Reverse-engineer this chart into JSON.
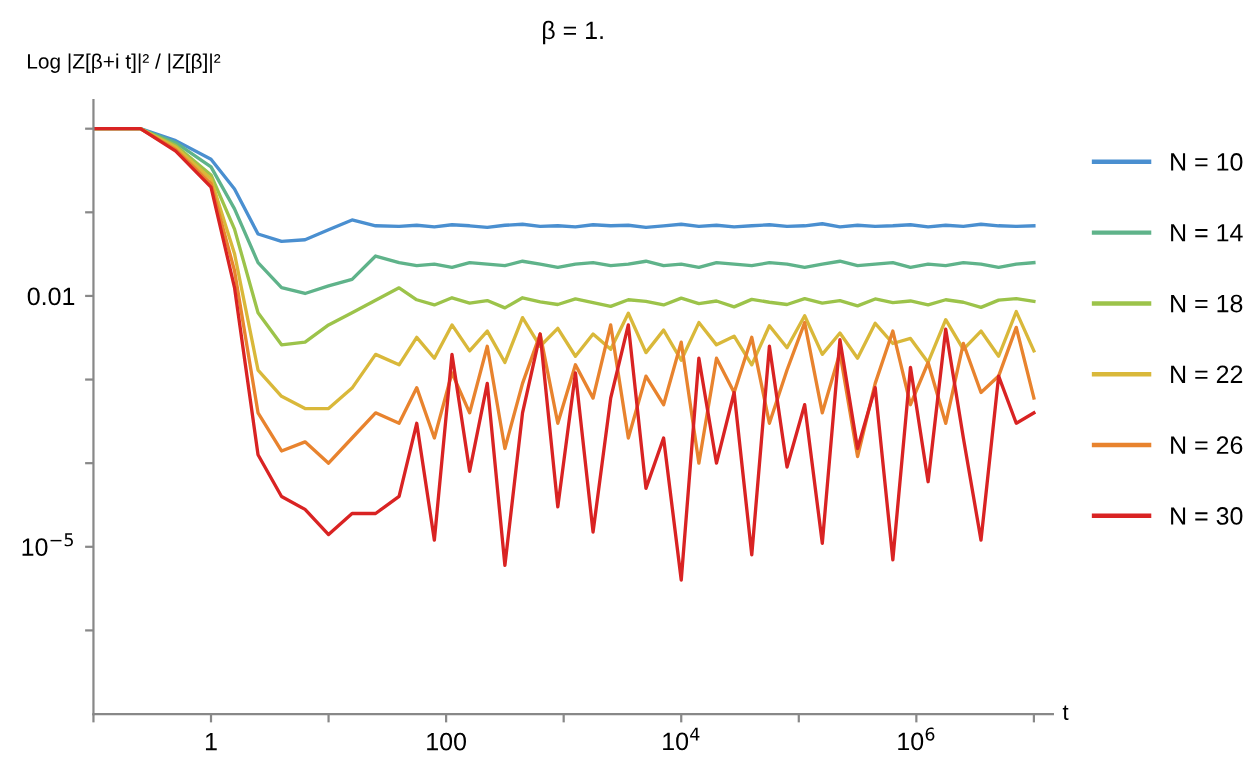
{
  "chart_data": {
    "type": "line",
    "title": "β = 1.",
    "xlabel": "t",
    "ylabel": "Log |Z[β+i t]|² / |Z[β]|²",
    "log": "xy",
    "grid": false,
    "legend": "right",
    "marker": "none",
    "line_style": "solid",
    "xlim": [
      0.1,
      14500000
    ],
    "ylim": [
      1e-07,
      2.2
    ],
    "xticks": [
      {
        "value": 0.1,
        "label": null
      },
      1,
      {
        "value": 10,
        "label": null
      },
      100,
      {
        "value": 1000,
        "label": null
      },
      {
        "value": 10000,
        "label": "10$^{4}$"
      },
      {
        "value": 100000,
        "label": null
      },
      {
        "value": 1000000,
        "label": "10$^{6}$"
      },
      {
        "value": 10000000,
        "label": null
      }
    ],
    "yticks": [
      {
        "value": 1e-06,
        "label": null
      },
      {
        "value": 1e-05,
        "label": "10$^{−5}$"
      },
      {
        "value": 0.0001,
        "label": null
      },
      {
        "value": 0.001,
        "label": null
      },
      0.01,
      {
        "value": 0.1,
        "label": null
      },
      {
        "value": 1,
        "label": null
      }
    ],
    "x": [
      0.1,
      0.251,
      0.501,
      1,
      1.585,
      2.512,
      3.981,
      6.31,
      10,
      15.85,
      25.12,
      39.81,
      56.23,
      79.43,
      112.2,
      158.5,
      223.9,
      316.2,
      446.7,
      631,
      891.3,
      1259,
      1778,
      2512,
      3548,
      5012,
      7079,
      10000,
      14130,
      19950,
      28180,
      39810,
      56230,
      79430,
      112200,
      158500,
      223900,
      316200,
      446700,
      631000,
      891300,
      1259000,
      1778000,
      2512000,
      3548000,
      5012000,
      7079000,
      10000000
    ],
    "series": [
      {
        "name": "N = 10",
        "color": "#4a8fd0",
        "values": [
          1,
          1,
          0.72,
          0.43,
          0.19,
          0.055,
          0.045,
          0.047,
          0.062,
          0.081,
          0.069,
          0.068,
          0.07,
          0.067,
          0.071,
          0.069,
          0.066,
          0.07,
          0.072,
          0.068,
          0.069,
          0.067,
          0.071,
          0.069,
          0.07,
          0.066,
          0.069,
          0.072,
          0.068,
          0.07,
          0.067,
          0.069,
          0.071,
          0.068,
          0.069,
          0.073,
          0.067,
          0.07,
          0.068,
          0.069,
          0.071,
          0.067,
          0.07,
          0.068,
          0.072,
          0.069,
          0.068,
          0.069
        ]
      },
      {
        "name": "N = 14",
        "color": "#5fb38a",
        "values": [
          1,
          1,
          0.68,
          0.35,
          0.11,
          0.025,
          0.0126,
          0.0107,
          0.0132,
          0.0158,
          0.03,
          0.025,
          0.023,
          0.024,
          0.022,
          0.025,
          0.024,
          0.023,
          0.026,
          0.024,
          0.022,
          0.024,
          0.025,
          0.023,
          0.024,
          0.026,
          0.023,
          0.024,
          0.022,
          0.025,
          0.024,
          0.023,
          0.025,
          0.024,
          0.022,
          0.024,
          0.026,
          0.023,
          0.024,
          0.025,
          0.022,
          0.024,
          0.023,
          0.025,
          0.024,
          0.022,
          0.024,
          0.025
        ]
      },
      {
        "name": "N = 18",
        "color": "#9cc34a",
        "values": [
          1,
          1,
          0.63,
          0.28,
          0.063,
          0.0063,
          0.0026,
          0.0028,
          0.0045,
          0.0063,
          0.0089,
          0.0125,
          0.009,
          0.0078,
          0.0095,
          0.0082,
          0.0088,
          0.0072,
          0.0095,
          0.0085,
          0.0079,
          0.0092,
          0.0083,
          0.0075,
          0.009,
          0.0086,
          0.0078,
          0.0094,
          0.0081,
          0.0087,
          0.0074,
          0.0091,
          0.0084,
          0.0079,
          0.0093,
          0.0082,
          0.0088,
          0.0076,
          0.0092,
          0.0083,
          0.0087,
          0.0078,
          0.009,
          0.0084,
          0.0073,
          0.0089,
          0.0093,
          0.0086
        ]
      },
      {
        "name": "N = 22",
        "color": "#d9b83a",
        "values": [
          1,
          1,
          0.6,
          0.25,
          0.032,
          0.0013,
          0.00063,
          0.00045,
          0.00045,
          0.00079,
          0.002,
          0.0015,
          0.0032,
          0.0018,
          0.0045,
          0.0022,
          0.0038,
          0.0016,
          0.0055,
          0.0025,
          0.0041,
          0.0019,
          0.0035,
          0.0023,
          0.0062,
          0.0021,
          0.0039,
          0.0017,
          0.0048,
          0.0026,
          0.0033,
          0.0015,
          0.0044,
          0.0024,
          0.0058,
          0.002,
          0.0036,
          0.0018,
          0.0047,
          0.0027,
          0.0031,
          0.0016,
          0.0052,
          0.0023,
          0.0038,
          0.0019,
          0.0065,
          0.0022
        ]
      },
      {
        "name": "N = 26",
        "color": "#e8832e",
        "values": [
          1,
          1,
          0.56,
          0.22,
          0.02,
          0.0004,
          0.00014,
          0.00018,
          0.0001,
          0.0002,
          0.0004,
          0.0003,
          0.0008,
          0.0002,
          0.0012,
          0.0004,
          0.0025,
          0.00015,
          0.0009,
          0.0035,
          0.0003,
          0.0015,
          0.0006,
          0.0045,
          0.0002,
          0.0011,
          0.0005,
          0.0028,
          0.0001,
          0.0018,
          0.0007,
          0.0032,
          0.0003,
          0.0013,
          0.0048,
          0.0004,
          0.0021,
          0.00012,
          0.0009,
          0.0038,
          0.0005,
          0.0016,
          0.0003,
          0.0027,
          0.0007,
          0.0011,
          0.0042,
          0.0006
        ]
      },
      {
        "name": "N = 30",
        "color": "#d92323",
        "values": [
          1,
          1,
          0.54,
          0.2,
          0.0126,
          0.000126,
          4e-05,
          2.8e-05,
          1.4e-05,
          2.5e-05,
          2.5e-05,
          4e-05,
          0.0003,
          1.2e-05,
          0.002,
          8e-05,
          0.0009,
          6e-06,
          0.0004,
          0.0035,
          3e-05,
          0.0012,
          1.5e-05,
          0.0006,
          0.0045,
          5e-05,
          0.0002,
          4e-06,
          0.0018,
          0.0001,
          0.0007,
          8e-06,
          0.0025,
          9e-05,
          0.0005,
          1.1e-05,
          0.003,
          0.00015,
          0.0008,
          7e-06,
          0.0014,
          6e-05,
          0.004,
          0.0002,
          1.2e-05,
          0.0011,
          0.0003,
          0.0004
        ]
      }
    ]
  }
}
